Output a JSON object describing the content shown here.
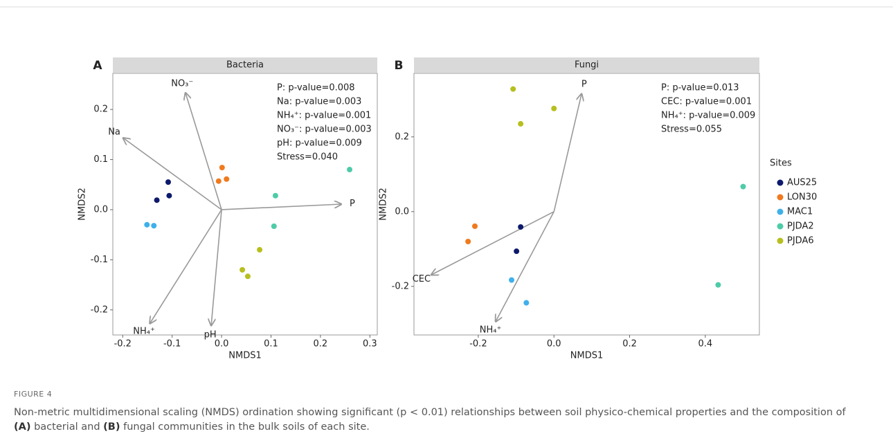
{
  "chart_data": [
    {
      "type": "scatter",
      "panel_label": "A",
      "title": "Bacteria",
      "x_label": "NMDS1",
      "y_label": "NMDS2",
      "xlim": [
        -0.22,
        0.315
      ],
      "ylim": [
        -0.25,
        0.272
      ],
      "xticks": [
        -0.2,
        -0.1,
        {
          "value": 0,
          "label": "0.0"
        },
        0.1,
        0.2,
        0.3
      ],
      "yticks": [
        -0.2,
        -0.1,
        {
          "value": 0,
          "label": "0.0"
        },
        0.1,
        0.2
      ],
      "series": [
        {
          "color": "#0d1a6b",
          "x": [
            -0.108,
            -0.106,
            -0.131
          ],
          "y": [
            0.055,
            0.028,
            0.019
          ]
        },
        {
          "color": "#f07a1e",
          "x": [
            0.001,
            -0.006,
            0.01
          ],
          "y": [
            0.084,
            0.057,
            0.061
          ]
        },
        {
          "color": "#3fb0ea",
          "x": [
            -0.151,
            -0.137
          ],
          "y": [
            -0.03,
            -0.032
          ]
        },
        {
          "color": "#4ecba8",
          "x": [
            0.259,
            0.109,
            0.106
          ],
          "y": [
            0.08,
            0.028,
            -0.033
          ]
        },
        {
          "color": "#b7bf1e",
          "x": [
            0.077,
            0.042,
            0.053
          ],
          "y": [
            -0.08,
            -0.12,
            -0.133
          ]
        }
      ],
      "vectors": [
        {
          "label": "NO₃⁻",
          "x": -0.073,
          "y": 0.233
        },
        {
          "label": "Na",
          "x": -0.199,
          "y": 0.143
        },
        {
          "label": "P",
          "x": 0.242,
          "y": 0.011
        },
        {
          "label": "NH₄⁺",
          "x": -0.145,
          "y": -0.227
        },
        {
          "label": "pH",
          "x": -0.021,
          "y": -0.231
        }
      ],
      "annotations": [
        "P: p-value=0.008",
        "Na: p-value=0.003",
        "NH₄⁺: p-value=0.001",
        "NO₃⁻: p-value=0.003",
        "pH: p-value=0.009",
        "Stress=0.040"
      ]
    },
    {
      "type": "scatter",
      "panel_label": "B",
      "title": "Fungi",
      "x_label": "NMDS1",
      "y_label": "NMDS2",
      "xlim": [
        -0.37,
        0.543
      ],
      "ylim": [
        -0.33,
        0.37
      ],
      "xticks": [
        -0.2,
        {
          "value": 0,
          "label": "0.0"
        },
        0.2,
        0.4
      ],
      "yticks": [
        -0.2,
        {
          "value": 0,
          "label": "0.0"
        },
        0.2
      ],
      "legend_title": "Sites",
      "series": [
        {
          "name": "AUS25",
          "color": "#0d1a6b",
          "x": [
            -0.088,
            -0.099
          ],
          "y": [
            -0.041,
            -0.106
          ]
        },
        {
          "name": "LON30",
          "color": "#f07a1e",
          "x": [
            -0.209,
            -0.227
          ],
          "y": [
            -0.039,
            -0.08
          ]
        },
        {
          "name": "MAC1",
          "color": "#3fb0ea",
          "x": [
            -0.112,
            -0.073
          ],
          "y": [
            -0.183,
            -0.244
          ]
        },
        {
          "name": "PJDA2",
          "color": "#4ecba8",
          "x": [
            0.5,
            0.434
          ],
          "y": [
            0.067,
            -0.196
          ]
        },
        {
          "name": "PJDA6",
          "color": "#b7bf1e",
          "x": [
            -0.108,
            0.0,
            -0.088
          ],
          "y": [
            0.328,
            0.276,
            0.235
          ]
        }
      ],
      "vectors": [
        {
          "label": "P",
          "x": 0.073,
          "y": 0.315
        },
        {
          "label": "CEC",
          "x": -0.324,
          "y": -0.169
        },
        {
          "label": "NH₄⁺",
          "x": -0.154,
          "y": -0.294
        }
      ],
      "annotations": [
        "P: p-value=0.013",
        "CEC: p-value=0.001",
        "NH₄⁺: p-value=0.009",
        "Stress=0.055"
      ]
    }
  ],
  "caption": {
    "label": "FIGURE 4",
    "parts": [
      "Non-metric multidimensional scaling (NMDS) ordination showing significant (p < 0.01) relationships between soil physico-chemical properties and the composition of ",
      "(A)",
      " bacterial and ",
      "(B)",
      " fungal communities in the bulk soils of each site."
    ]
  }
}
